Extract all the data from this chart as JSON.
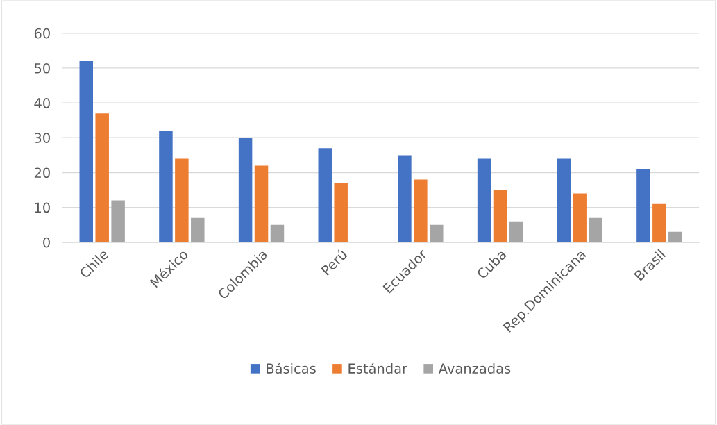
{
  "chart_data": {
    "type": "bar",
    "categories": [
      "Chile",
      "México",
      "Colombia",
      "Perú",
      "Ecuador",
      "Cuba",
      "Rep.Dominicana",
      "Brasil"
    ],
    "series": [
      {
        "name": "Básicas",
        "color": "#4472c4",
        "values": [
          52,
          32,
          30,
          27,
          25,
          24,
          24,
          21
        ]
      },
      {
        "name": "Estándar",
        "color": "#ed7d31",
        "values": [
          37,
          24,
          22,
          17,
          18,
          15,
          14,
          11
        ]
      },
      {
        "name": "Avanzadas",
        "color": "#a5a5a5",
        "values": [
          12,
          7,
          5,
          null,
          5,
          6,
          7,
          3
        ]
      }
    ],
    "ylim": [
      0,
      60
    ],
    "yticks": [
      0,
      10,
      20,
      30,
      40,
      50,
      60
    ],
    "grid": "y",
    "legend": "bottom"
  }
}
